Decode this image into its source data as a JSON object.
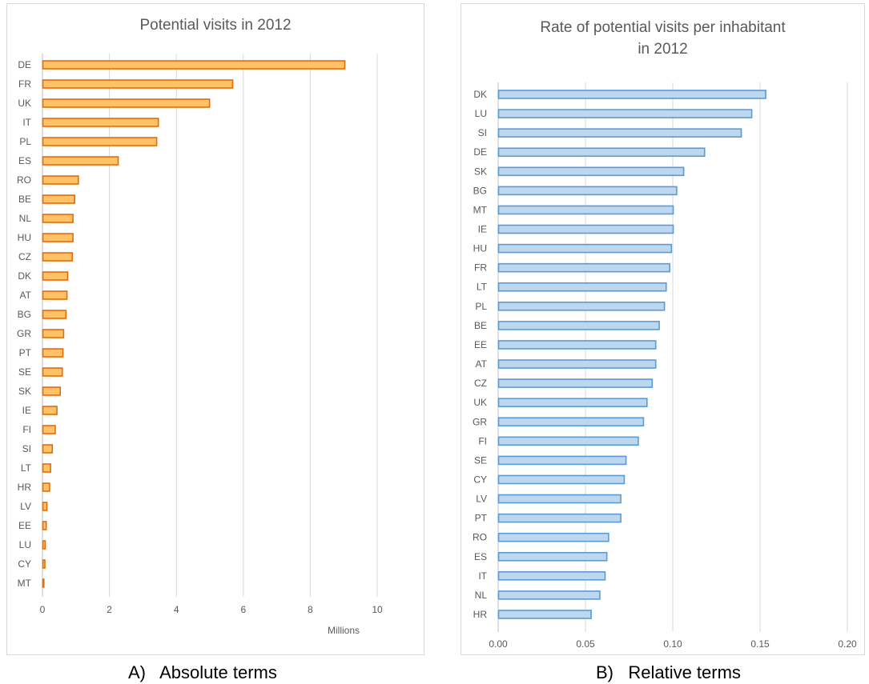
{
  "chart_data": [
    {
      "type": "bar",
      "orientation": "horizontal",
      "title": "Potential visits in 2012",
      "xlabel": "Millions",
      "ylabel": "",
      "xlim": [
        0,
        10
      ],
      "xticks": [
        "0",
        "2",
        "4",
        "6",
        "8",
        "10"
      ],
      "grid": true,
      "bar_color": "#FFC266",
      "edge_color": "#E46C0A",
      "categories": [
        "DE",
        "FR",
        "UK",
        "IT",
        "PL",
        "ES",
        "RO",
        "BE",
        "NL",
        "HU",
        "CZ",
        "DK",
        "AT",
        "BG",
        "GR",
        "PT",
        "SE",
        "SK",
        "IE",
        "FI",
        "SI",
        "LT",
        "HR",
        "LV",
        "EE",
        "LU",
        "CY",
        "MT"
      ],
      "values": [
        9.02,
        5.67,
        4.98,
        3.45,
        3.4,
        2.25,
        1.06,
        0.95,
        0.9,
        0.9,
        0.88,
        0.74,
        0.72,
        0.69,
        0.62,
        0.6,
        0.58,
        0.52,
        0.42,
        0.37,
        0.28,
        0.23,
        0.2,
        0.12,
        0.1,
        0.07,
        0.06,
        0.03
      ]
    },
    {
      "type": "bar",
      "orientation": "horizontal",
      "title": "Rate of potential visits per inhabitant in 2012",
      "xlabel": "",
      "ylabel": "",
      "xlim": [
        0,
        0.2
      ],
      "xticks": [
        "0.00",
        "0.05",
        "0.10",
        "0.15",
        "0.20"
      ],
      "grid": true,
      "bar_color": "#BDD7EE",
      "edge_color": "#5B9BD5",
      "categories": [
        "DK",
        "LU",
        "SI",
        "DE",
        "SK",
        "BG",
        "MT",
        "IE",
        "HU",
        "FR",
        "LT",
        "PL",
        "BE",
        "EE",
        "AT",
        "CZ",
        "UK",
        "GR",
        "FI",
        "SE",
        "CY",
        "LV",
        "PT",
        "RO",
        "ES",
        "IT",
        "NL",
        "HR"
      ],
      "values": [
        0.153,
        0.145,
        0.139,
        0.118,
        0.106,
        0.102,
        0.1,
        0.1,
        0.099,
        0.098,
        0.096,
        0.095,
        0.092,
        0.09,
        0.09,
        0.088,
        0.085,
        0.083,
        0.08,
        0.073,
        0.072,
        0.07,
        0.07,
        0.063,
        0.062,
        0.061,
        0.058,
        0.053
      ]
    }
  ],
  "captions": {
    "a": "A)   Absolute terms",
    "b": "B)   Relative terms"
  }
}
